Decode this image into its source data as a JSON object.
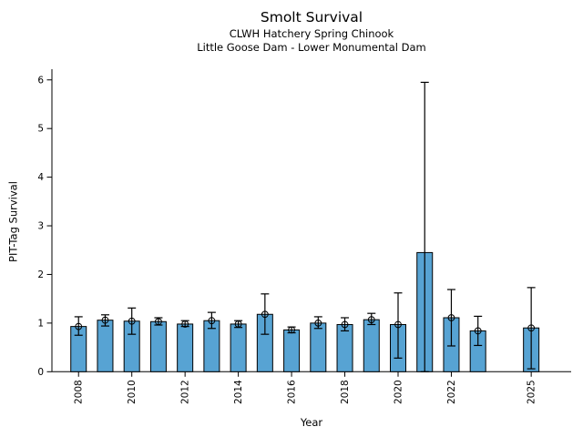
{
  "figure": {
    "background": "#ffffff"
  },
  "chart_data": {
    "type": "bar",
    "title": "Smolt Survival",
    "subtitle1": "CLWH Hatchery Spring Chinook",
    "subtitle2": "Little Goose Dam - Lower Monumental Dam",
    "xlabel": "Year",
    "ylabel": "PIT-Tag Survival",
    "xlim": [
      2007.0,
      2026.5
    ],
    "ylim": [
      0,
      6.22
    ],
    "yticks": [
      0,
      1,
      2,
      3,
      4,
      5,
      6
    ],
    "xticks": [
      2008,
      2010,
      2012,
      2014,
      2016,
      2018,
      2020,
      2022,
      2025
    ],
    "xtick_rotation": 90,
    "grid": false,
    "legend": "none",
    "bar_color": "#57a3d3",
    "bar_edge_color": "#000000",
    "error_color": "#000000",
    "marker_style": "open-circle",
    "series": [
      {
        "name": "PIT-Tag Survival",
        "points": [
          {
            "year": 2008,
            "value": 0.93,
            "err_low": 0.75,
            "err_high": 1.13,
            "marker": true
          },
          {
            "year": 2009,
            "value": 1.06,
            "err_low": 0.94,
            "err_high": 1.17,
            "marker": true
          },
          {
            "year": 2010,
            "value": 1.04,
            "err_low": 0.77,
            "err_high": 1.31,
            "marker": true
          },
          {
            "year": 2011,
            "value": 1.03,
            "err_low": 0.96,
            "err_high": 1.11,
            "marker": true
          },
          {
            "year": 2012,
            "value": 0.98,
            "err_low": 0.93,
            "err_high": 1.05,
            "marker": true
          },
          {
            "year": 2013,
            "value": 1.05,
            "err_low": 0.89,
            "err_high": 1.22,
            "marker": true
          },
          {
            "year": 2014,
            "value": 0.98,
            "err_low": 0.91,
            "err_high": 1.05,
            "marker": true
          },
          {
            "year": 2015,
            "value": 1.18,
            "err_low": 0.77,
            "err_high": 1.6,
            "marker": true
          },
          {
            "year": 2016,
            "value": 0.86,
            "err_low": 0.8,
            "err_high": 0.92,
            "marker": true
          },
          {
            "year": 2017,
            "value": 1.0,
            "err_low": 0.89,
            "err_high": 1.13,
            "marker": true
          },
          {
            "year": 2018,
            "value": 0.97,
            "err_low": 0.84,
            "err_high": 1.11,
            "marker": true
          },
          {
            "year": 2019,
            "value": 1.07,
            "err_low": 0.97,
            "err_high": 1.2,
            "marker": true
          },
          {
            "year": 2020,
            "value": 0.97,
            "err_low": 0.28,
            "err_high": 1.62,
            "marker": true
          },
          {
            "year": 2021,
            "value": 2.45,
            "err_low": 0.0,
            "err_high": 5.95,
            "marker": false
          },
          {
            "year": 2022,
            "value": 1.11,
            "err_low": 0.53,
            "err_high": 1.69,
            "marker": true
          },
          {
            "year": 2023,
            "value": 0.84,
            "err_low": 0.54,
            "err_high": 1.14,
            "marker": true
          },
          {
            "year": 2025,
            "value": 0.9,
            "err_low": 0.06,
            "err_high": 1.73,
            "marker": true
          }
        ]
      }
    ]
  }
}
